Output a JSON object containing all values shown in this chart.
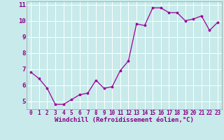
{
  "x": [
    0,
    1,
    2,
    3,
    4,
    5,
    6,
    7,
    8,
    9,
    10,
    11,
    12,
    13,
    14,
    15,
    16,
    17,
    18,
    19,
    20,
    21,
    22,
    23
  ],
  "y": [
    6.8,
    6.4,
    5.8,
    4.8,
    4.8,
    5.1,
    5.4,
    5.5,
    6.3,
    5.8,
    5.9,
    6.9,
    7.5,
    9.8,
    9.7,
    10.8,
    10.8,
    10.5,
    10.5,
    10.0,
    10.1,
    10.3,
    9.4,
    9.9
  ],
  "xlabel": "Windchill (Refroidissement éolien,°C)",
  "ylim": [
    4.5,
    11.2
  ],
  "xlim": [
    -0.5,
    23.5
  ],
  "line_color": "#990099",
  "marker_color": "#990099",
  "bg_color": "#c8eaea",
  "grid_color": "#ffffff",
  "tick_color": "#880088",
  "label_color": "#880088",
  "yticks": [
    5,
    6,
    7,
    8,
    9,
    10,
    11
  ],
  "xticks": [
    0,
    1,
    2,
    3,
    4,
    5,
    6,
    7,
    8,
    9,
    10,
    11,
    12,
    13,
    14,
    15,
    16,
    17,
    18,
    19,
    20,
    21,
    22,
    23
  ],
  "xlabel_fontsize": 6.5,
  "tick_fontsize": 5.5,
  "ytick_fontsize": 6.5
}
